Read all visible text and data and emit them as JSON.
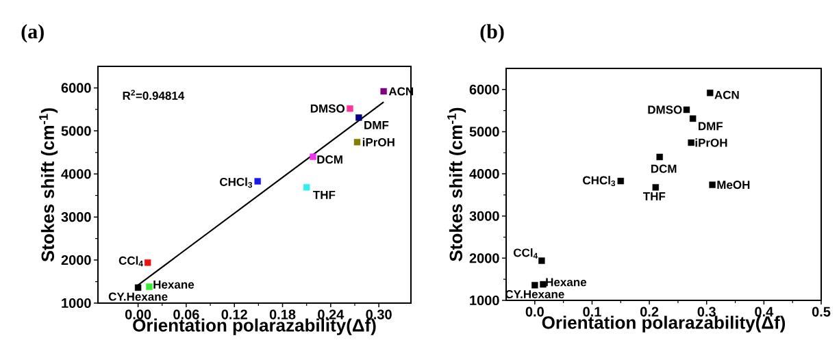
{
  "chart_data": [
    {
      "type": "scatter",
      "title": "(a)",
      "xlabel": "Orientation polarazability(Δf)",
      "ylabel": "Stokes shift (cm$^{-1}$)",
      "marker": "square",
      "xlim": [
        -0.05,
        0.34
      ],
      "ylim": [
        1000,
        6500
      ],
      "xticks": [
        {
          "value": 0,
          "label": "0.00"
        },
        {
          "value": 0.06,
          "label": "0.06"
        },
        {
          "value": 0.12,
          "label": "0.12"
        },
        {
          "value": 0.18,
          "label": "0.18"
        },
        {
          "value": 0.24,
          "label": "0.24"
        },
        {
          "value": 0.3,
          "label": "0.30"
        }
      ],
      "yticks": [
        1000,
        2000,
        3000,
        4000,
        5000,
        6000
      ],
      "series": [
        {
          "x": [
            0.0,
            0.014,
            0.012,
            0.149,
            0.21,
            0.218,
            0.273,
            0.275,
            0.264,
            0.306
          ],
          "values": [
            1360,
            1380,
            1940,
            3830,
            3690,
            4400,
            4740,
            5310,
            5520,
            5920
          ],
          "colors": [
            "#000000",
            "#33ee33",
            "#ee1111",
            "#1a1aee",
            "#33eeee",
            "#ee33ee",
            "#808000",
            "#000080",
            "#ff3399",
            "#800080"
          ]
        },
        {
          "type": "line",
          "x": [
            0.0,
            0.306
          ],
          "values": [
            1420,
            5670
          ],
          "color": "#000000",
          "marker": "none"
        }
      ],
      "annotations": [
        "R$^{2}$=0.94814",
        {
          "text": "CY.Hexane",
          "x": 0.0,
          "y": 1360
        },
        {
          "text": "Hexane",
          "x": 0.014,
          "y": 1380
        },
        {
          "text": "CCl$_{4}$",
          "x": 0.012,
          "y": 1940
        },
        {
          "text": "CHCl$_{3}$",
          "x": 0.149,
          "y": 3830
        },
        {
          "text": "THF",
          "x": 0.21,
          "y": 3690
        },
        {
          "text": "DCM",
          "x": 0.218,
          "y": 4400
        },
        {
          "text": "iPrOH",
          "x": 0.273,
          "y": 4740
        },
        {
          "text": "DMF",
          "x": 0.275,
          "y": 5310
        },
        {
          "text": "DMSO",
          "x": 0.264,
          "y": 5520
        },
        {
          "text": "ACN",
          "x": 0.306,
          "y": 5920
        }
      ]
    },
    {
      "type": "scatter",
      "title": "(b)",
      "xlabel": "Orientation polarazability(Δf)",
      "ylabel": "Stokes shift (cm$^{-1}$)",
      "marker": "square",
      "xlim": [
        -0.05,
        0.5
      ],
      "ylim": [
        1000,
        6500
      ],
      "xticks": [
        {
          "value": 0,
          "label": "0.0"
        },
        {
          "value": 0.1,
          "label": "0.1"
        },
        {
          "value": 0.2,
          "label": "0.2"
        },
        {
          "value": 0.3,
          "label": "0.3"
        },
        {
          "value": 0.4,
          "label": "0.4"
        },
        {
          "value": 0.5,
          "label": "0.5"
        }
      ],
      "yticks": [
        1000,
        2000,
        3000,
        4000,
        5000,
        6000
      ],
      "series": [
        {
          "x": [
            0.0,
            0.0145,
            0.012,
            0.15,
            0.211,
            0.218,
            0.273,
            0.276,
            0.265,
            0.306,
            0.31
          ],
          "values": [
            1360,
            1380,
            1940,
            3830,
            3680,
            4400,
            4740,
            5310,
            5520,
            5920,
            3740
          ],
          "color": "#000000"
        }
      ],
      "annotations": [
        {
          "text": "CY.Hexane",
          "x": 0.0,
          "y": 1360
        },
        {
          "text": "Hexane",
          "x": 0.0145,
          "y": 1380
        },
        {
          "text": "CCl$_{4}$",
          "x": 0.012,
          "y": 1940
        },
        {
          "text": "CHCl$_{3}$",
          "x": 0.15,
          "y": 3830
        },
        {
          "text": "THF",
          "x": 0.211,
          "y": 3680
        },
        {
          "text": "DCM",
          "x": 0.218,
          "y": 4400
        },
        {
          "text": "iPrOH",
          "x": 0.273,
          "y": 4740
        },
        {
          "text": "DMF",
          "x": 0.276,
          "y": 5310
        },
        {
          "text": "DMSO",
          "x": 0.265,
          "y": 5520
        },
        {
          "text": "ACN",
          "x": 0.306,
          "y": 5920
        },
        {
          "text": "MeOH",
          "x": 0.31,
          "y": 3740
        }
      ]
    }
  ]
}
